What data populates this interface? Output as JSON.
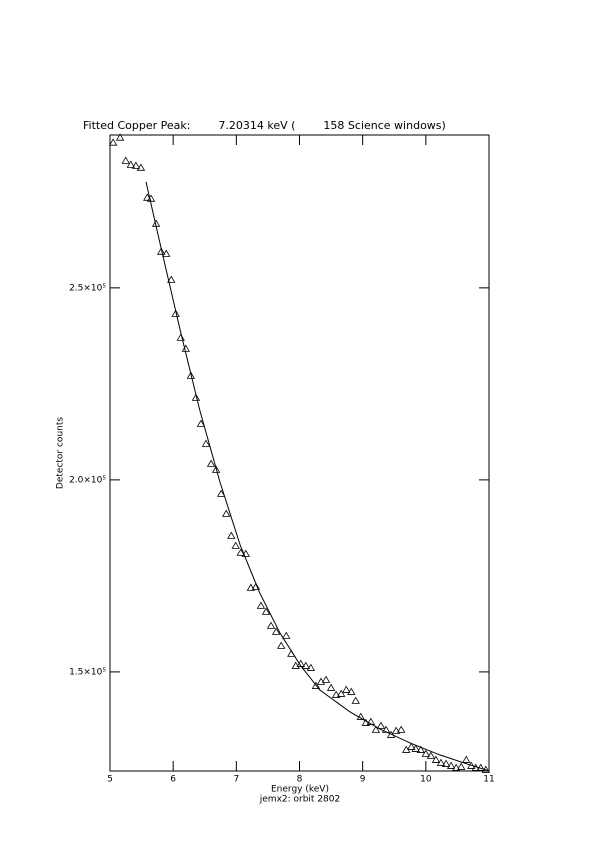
{
  "chart_data": {
    "type": "scatter",
    "title": "Fitted Copper Peak:        7.20314 keV (        158 Science windows)",
    "x_label": "Energy (keV)",
    "y_label": "Detector counts",
    "subtitle": "jemx2: orbit 2802",
    "xlim": [
      5,
      11
    ],
    "xticks": [
      5,
      6,
      7,
      8,
      9,
      10,
      11
    ],
    "ylim": [
      124200,
      289800
    ],
    "yticks": [
      {
        "value": 150000,
        "label": "1.5×10⁵"
      },
      {
        "value": 200000,
        "label": "2.0×10⁵"
      },
      {
        "value": 250000,
        "label": "2.5×10⁵"
      }
    ],
    "series": [
      {
        "marker": "triangle",
        "color": "#000000",
        "x": [
          5.05,
          5.16,
          5.25,
          5.33,
          5.41,
          5.49,
          5.59,
          5.65,
          5.73,
          5.81,
          5.89,
          5.97,
          6.04,
          6.12,
          6.2,
          6.28,
          6.36,
          6.44,
          6.52,
          6.6,
          6.68,
          6.76,
          6.84,
          6.92,
          6.99,
          7.07,
          7.15,
          7.23,
          7.31,
          7.39,
          7.47,
          7.55,
          7.63,
          7.71,
          7.79,
          7.87,
          7.94,
          8.02,
          8.1,
          8.18,
          8.26,
          8.34,
          8.42,
          8.5,
          8.58,
          8.66,
          8.74,
          8.82,
          8.89,
          8.97,
          9.05,
          9.13,
          9.21,
          9.29,
          9.37,
          9.45,
          9.53,
          9.61,
          9.69,
          9.77,
          9.84,
          9.92,
          10.0,
          10.08,
          10.16,
          10.24,
          10.32,
          10.4,
          10.48,
          10.56,
          10.64,
          10.72,
          10.79,
          10.87,
          10.95
        ],
        "values": [
          287800,
          289100,
          283070,
          282030,
          281770,
          281250,
          273440,
          273180,
          266670,
          259380,
          258850,
          252080,
          243230,
          236980,
          234110,
          227080,
          221350,
          214580,
          209380,
          204170,
          202600,
          196350,
          191150,
          185420,
          182810,
          180990,
          180730,
          171880,
          172140,
          167190,
          165630,
          161980,
          160420,
          156770,
          159380,
          154690,
          151560,
          152080,
          151560,
          151040,
          146350,
          147400,
          147920,
          145830,
          144010,
          144270,
          145310,
          144790,
          142450,
          138280,
          136720,
          136980,
          134900,
          135940,
          134900,
          133590,
          134640,
          134900,
          129690,
          130470,
          129950,
          129690,
          128650,
          128130,
          127080,
          126300,
          126040,
          125520,
          125000,
          125260,
          127080,
          125520,
          125000,
          125000,
          124480
        ]
      },
      {
        "marker": "line",
        "color": "#000000",
        "x": [
          5.57,
          5.79,
          6.11,
          6.42,
          6.74,
          7.06,
          7.37,
          7.69,
          8.01,
          8.32,
          8.8,
          9.27,
          9.75,
          10.22,
          10.7,
          11.0
        ],
        "values": [
          277600,
          261720,
          239060,
          218230,
          199480,
          183070,
          170570,
          160160,
          151820,
          145310,
          139580,
          135160,
          131510,
          128390,
          125780,
          124220
        ]
      }
    ]
  }
}
